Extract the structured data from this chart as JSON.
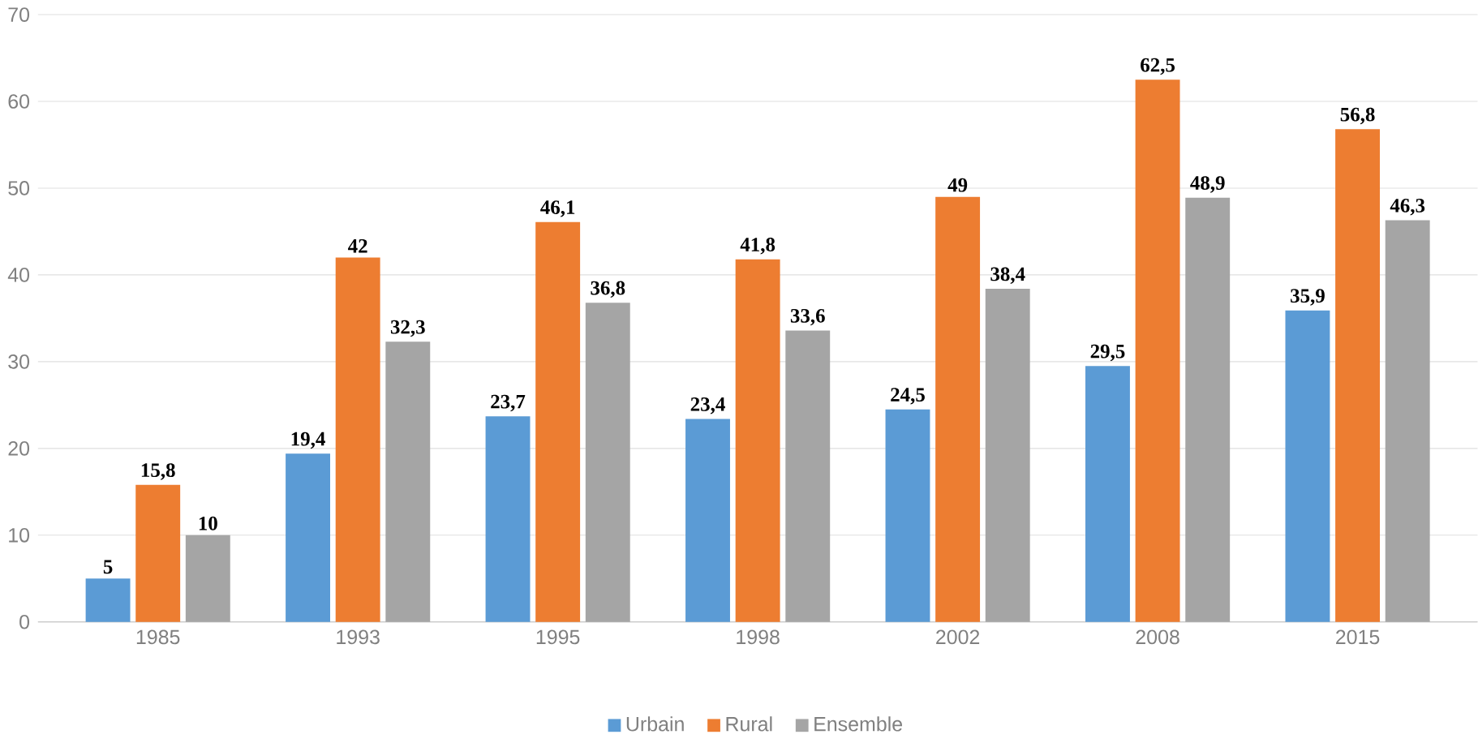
{
  "chart_data": {
    "type": "bar",
    "categories": [
      "1985",
      "1993",
      "1995",
      "1998",
      "2002",
      "2008",
      "2015"
    ],
    "series": [
      {
        "name": "Urbain",
        "color": "#5b9bd5",
        "values": [
          5,
          19.4,
          23.7,
          23.4,
          24.5,
          29.5,
          35.9
        ],
        "value_labels": [
          "5",
          "19,4",
          "23,7",
          "23,4",
          "24,5",
          "29,5",
          "35,9"
        ]
      },
      {
        "name": "Rural",
        "color": "#ed7d31",
        "values": [
          15.8,
          42,
          46.1,
          41.8,
          49,
          62.5,
          56.8
        ],
        "value_labels": [
          "15,8",
          "42",
          "46,1",
          "41,8",
          "49",
          "62,5",
          "56,8"
        ]
      },
      {
        "name": "Ensemble",
        "color": "#a5a5a5",
        "values": [
          10,
          32.3,
          36.8,
          33.6,
          38.4,
          48.9,
          46.3
        ],
        "value_labels": [
          "10",
          "32,3",
          "36,8",
          "33,6",
          "38,4",
          "48,9",
          "46,3"
        ]
      }
    ],
    "ylim": [
      0,
      70
    ],
    "yticks": [
      0,
      10,
      20,
      30,
      40,
      50,
      60,
      70
    ],
    "grid": "y",
    "legend": "bottom"
  }
}
